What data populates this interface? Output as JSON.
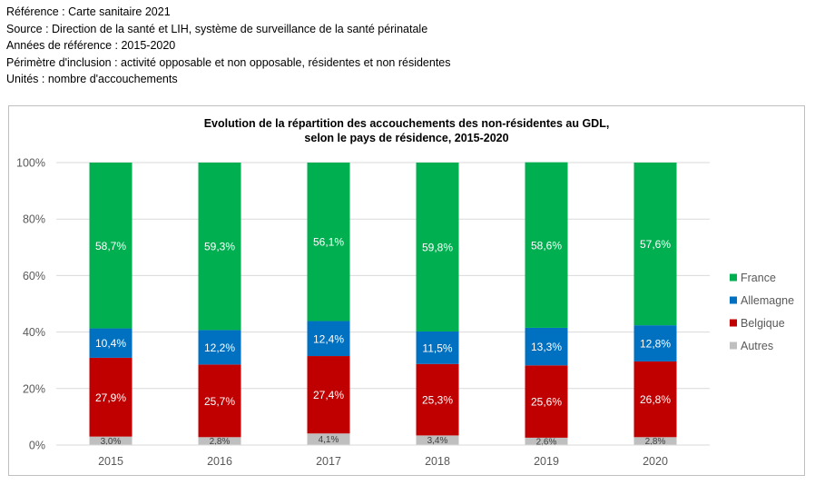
{
  "header": {
    "lines": [
      "Référence : Carte sanitaire 2021",
      "Source : Direction de la santé et LIH, système de surveillance de la santé périnatale",
      "Années de référence : 2015-2020",
      "Périmètre d'inclusion : activité opposable et non opposable, résidentes et non résidentes",
      "Unités : nombre d'accouchements"
    ]
  },
  "chart_data": {
    "type": "bar",
    "stacked": true,
    "title_lines": [
      "Evolution de la répartition des accouchements des non-résidentes au GDL,",
      "selon le pays de résidence, 2015-2020"
    ],
    "categories": [
      "2015",
      "2016",
      "2017",
      "2018",
      "2019",
      "2020"
    ],
    "y_ticks": [
      "0%",
      "20%",
      "40%",
      "60%",
      "80%",
      "100%"
    ],
    "ylim": [
      0,
      100
    ],
    "grid": true,
    "legend_position": "right",
    "series": [
      {
        "name": "Autres",
        "color": "#bfbfbf",
        "label_color": "#404040",
        "values": [
          3.0,
          2.8,
          4.1,
          3.4,
          2.6,
          2.8
        ],
        "labels": [
          "3,0%",
          "2,8%",
          "4,1%",
          "3,4%",
          "2,6%",
          "2,8%"
        ]
      },
      {
        "name": "Belgique",
        "color": "#c00000",
        "label_color": "#ffffff",
        "values": [
          27.9,
          25.7,
          27.4,
          25.3,
          25.6,
          26.8
        ],
        "labels": [
          "27,9%",
          "25,7%",
          "27,4%",
          "25,3%",
          "25,6%",
          "26,8%"
        ]
      },
      {
        "name": "Allemagne",
        "color": "#0070c0",
        "label_color": "#ffffff",
        "values": [
          10.4,
          12.2,
          12.4,
          11.5,
          13.3,
          12.8
        ],
        "labels": [
          "10,4%",
          "12,2%",
          "12,4%",
          "11,5%",
          "13,3%",
          "12,8%"
        ]
      },
      {
        "name": "France",
        "color": "#00b050",
        "label_color": "#ffffff",
        "values": [
          58.7,
          59.3,
          56.1,
          59.8,
          58.6,
          57.6
        ],
        "labels": [
          "58,7%",
          "59,3%",
          "56,1%",
          "59,8%",
          "58,6%",
          "57,6%"
        ]
      }
    ],
    "legend_order": [
      "France",
      "Allemagne",
      "Belgique",
      "Autres"
    ]
  }
}
